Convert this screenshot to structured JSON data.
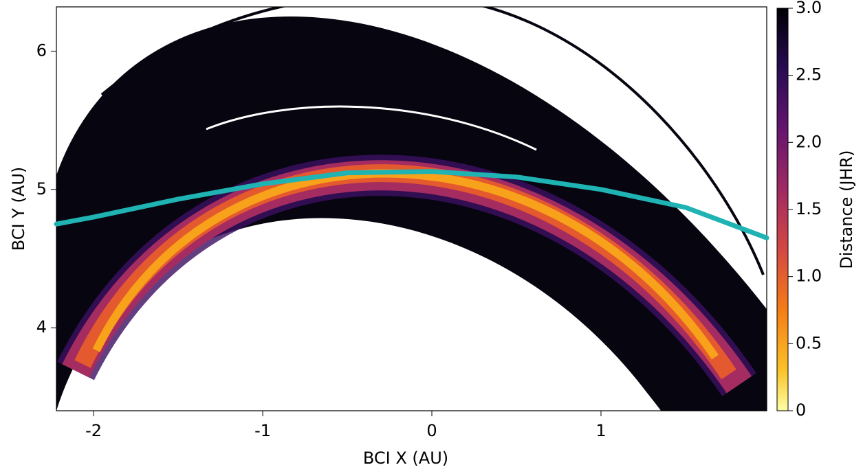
{
  "chart_data": {
    "type": "line",
    "xlabel": "BCI X (AU)",
    "ylabel": "BCI Y (AU)",
    "x": [
      -2.22,
      -2.0,
      -1.5,
      -1.0,
      -0.5,
      0.0,
      0.5,
      1.0,
      1.5,
      1.98
    ],
    "values": [
      4.75,
      4.8,
      4.93,
      5.04,
      5.12,
      5.13,
      5.09,
      5.0,
      4.87,
      4.65
    ],
    "color": "#1fb3b3",
    "xlim": [
      -2.22,
      1.98
    ],
    "ylim": [
      3.4,
      6.32
    ],
    "xticks": [
      -2,
      -1,
      0,
      1
    ],
    "yticks": [
      4,
      5,
      6
    ],
    "colorbar": {
      "label": "Distance (JHR)",
      "colormap": "inferno_r",
      "lim": [
        0,
        3
      ],
      "ticks": [
        0,
        0.5,
        {
          "value": 1,
          "label": "1.0"
        },
        1.5,
        {
          "value": 2,
          "label": "2.0"
        },
        2.5,
        {
          "value": 3,
          "label": "3.0"
        }
      ]
    }
  }
}
